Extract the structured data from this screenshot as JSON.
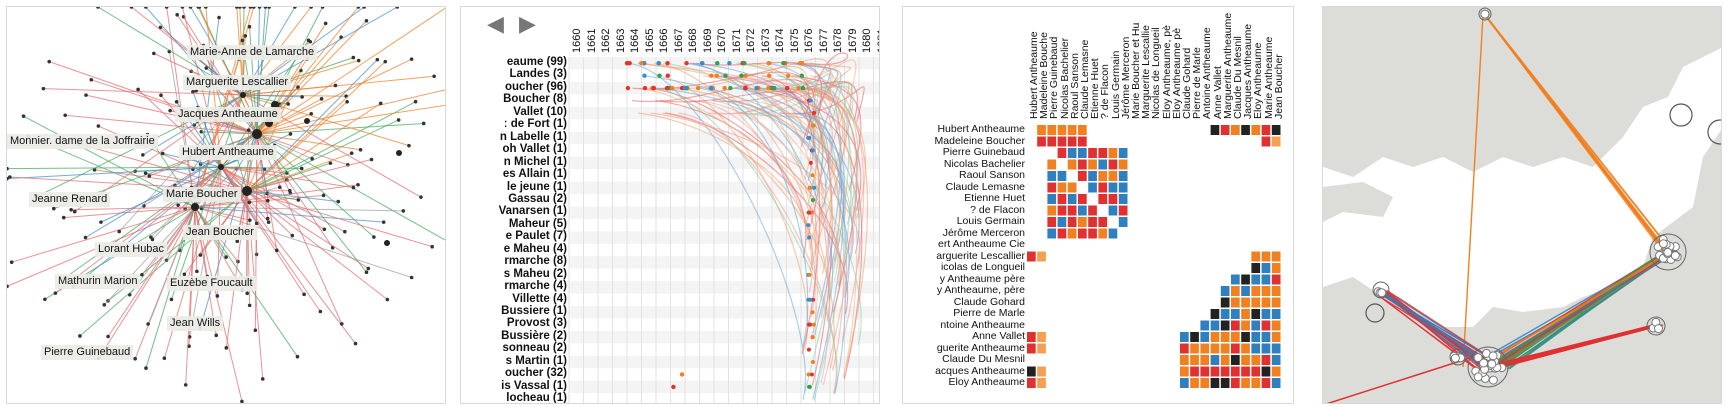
{
  "network": {
    "nodes": [
      {
        "label": "Marie-Anne de Lamarche"
      },
      {
        "label": "Marguerite Lescallier"
      },
      {
        "label": "Jacques Antheaume"
      },
      {
        "label": "Monnier. dame de la Joffrairie"
      },
      {
        "label": "Hubert Antheaume"
      },
      {
        "label": "Jeanne Renard"
      },
      {
        "label": "Marie Boucher"
      },
      {
        "label": "Jean Boucher"
      },
      {
        "label": "Lorant Hubac"
      },
      {
        "label": "Mathurin Marion"
      },
      {
        "label": "Euzèbe Foucault"
      },
      {
        "label": "Jean Wills"
      },
      {
        "label": "Pierre Guinebaud"
      }
    ],
    "edge_colors": [
      "#e07070",
      "#f08030",
      "#4a90c8",
      "#4aa860",
      "#a0a0a0"
    ]
  },
  "timeline": {
    "years": [
      "1660",
      "1661",
      "1662",
      "1663",
      "1664",
      "1665",
      "1666",
      "1667",
      "1668",
      "1669",
      "1670",
      "1671",
      "1672",
      "1673",
      "1674",
      "1675",
      "1676",
      "1677",
      "1678",
      "1679",
      "1680",
      "1681"
    ],
    "rows": [
      "eaume (99)",
      " Landes (3)",
      "oucher (96)",
      " Boucher (8)",
      " Vallet (10)",
      "ː de Fort (1)",
      "n Labelle (1)",
      "oh Vallet (1)",
      "n Michel (1)",
      "es Allain (1)",
      " le jeune (1)",
      " Gassau (2)",
      "Vanarsen (1)",
      " Maheur (5)",
      "e Paulet (7)",
      "e Maheu (4)",
      "rmarche (8)",
      "s Maheu (2)",
      "rmarche (4)",
      " Villette (4)",
      " Bussiere (1)",
      " Provost (3)",
      " Bussière (2)",
      "sonneau (2)",
      "s Martin (1)",
      "oucher (32)",
      "is Vassal (1)",
      "locheau (1)"
    ]
  },
  "matrix": {
    "rows": [
      "Hubert Antheaume",
      "Madeleine Boucher",
      "Pierre Guinebaud",
      "Nicolas Bachelier",
      "Raoul Sanson",
      "Claude Lemasne",
      "Etienne Huet",
      "? de Flacon",
      "Louis Germain",
      "Jérôme Merceron",
      "ert Antheaume Cie",
      "arguerite Lescallier",
      "icolas de Longueil",
      "y Antheaume père",
      "y Antheaume, père",
      "Claude Gohard",
      "Pierre de Marle",
      "ntoine Antheaume",
      "Anne Vallet",
      "guerite Antheaume",
      "Claude Du Mesnil",
      "acques Antheaume",
      "Eloy Antheaume"
    ],
    "cols": [
      "Hubert Antheaume",
      "Madeleine Bouche",
      "Pierre Guinebaud",
      "Nicolas Bachelier",
      "Raoul Sanson",
      "Claude Lemasne",
      "Etienne Huet",
      "? de Flacon",
      "Louis Germain",
      "Jérôme Merceron",
      "Marie Boucher et Hu",
      "Marguerite Lescallie",
      "Nicolas de Longueil",
      "Eloy Antheaume, pè",
      "Eloy Antheaume pè",
      "Claude Gohard",
      "Pierre de Marle",
      "Antoine Antheaume",
      "Anne Vallet",
      "Marguerite Antheaume",
      "Claude Du Mesnil",
      "Jacques Antheaume",
      "Eloy Antheaume",
      "Marie Antheaume",
      "Jean Boucher"
    ]
  },
  "map": {
    "land_color": "#dcdcd8",
    "sea_color": "#ffffff"
  },
  "nav": {
    "prev": "◀",
    "next": "▶"
  }
}
